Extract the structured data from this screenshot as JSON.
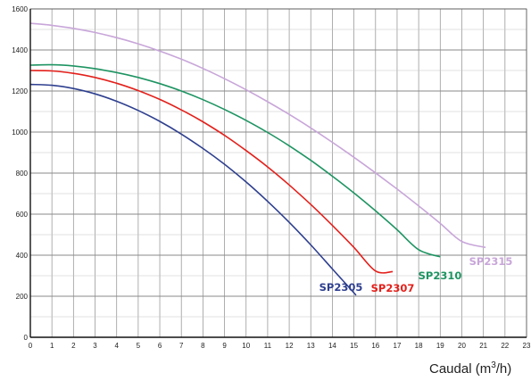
{
  "chart_data": {
    "type": "line",
    "xlabel": "Caudal (m",
    "xlabel_sup": "3",
    "xlabel_end": "/h)",
    "ylabel": "",
    "xlim": [
      0,
      23
    ],
    "ylim": [
      0,
      1600
    ],
    "x_ticks": [
      0,
      1,
      2,
      3,
      4,
      5,
      6,
      7,
      8,
      9,
      10,
      11,
      12,
      13,
      14,
      15,
      16,
      17,
      18,
      19,
      20,
      21,
      22,
      23
    ],
    "y_ticks": [
      0,
      200,
      400,
      600,
      800,
      1000,
      1200,
      1400,
      1600
    ],
    "grid": true,
    "series": [
      {
        "name": "SP2305",
        "color": "#2e3f8f",
        "x": [
          0,
          1,
          2,
          3,
          4,
          5,
          6,
          7,
          8,
          9,
          10,
          11,
          12,
          13,
          14,
          15.1
        ],
        "y": [
          1232,
          1228,
          1212,
          1186,
          1150,
          1105,
          1052,
          990,
          920,
          843,
          757,
          662,
          560,
          450,
          333,
          205
        ]
      },
      {
        "name": "SP2307",
        "color": "#e3201b",
        "x": [
          0,
          1,
          2,
          3,
          4,
          5,
          6,
          7,
          8,
          9,
          10,
          11,
          12,
          13,
          14,
          15,
          16,
          16.8
        ],
        "y": [
          1300,
          1298,
          1286,
          1266,
          1238,
          1202,
          1159,
          1108,
          1050,
          984,
          910,
          830,
          742,
          647,
          545,
          438,
          323,
          320
        ]
      },
      {
        "name": "SP2310",
        "color": "#1e9462",
        "x": [
          0,
          1,
          2,
          3,
          4,
          5,
          6,
          7,
          8,
          9,
          10,
          11,
          12,
          13,
          14,
          15,
          16,
          17,
          18,
          19
        ],
        "y": [
          1326,
          1328,
          1322,
          1309,
          1290,
          1266,
          1236,
          1200,
          1158,
          1110,
          1057,
          998,
          933,
          862,
          785,
          703,
          616,
          524,
          427,
          392
        ]
      },
      {
        "name": "SP2315",
        "color": "#c8a6d9",
        "x": [
          0,
          1,
          2,
          3,
          4,
          5,
          6,
          7,
          8,
          9,
          10,
          11,
          12,
          13,
          14,
          15,
          16,
          17,
          18,
          19,
          20,
          21.1
        ],
        "y": [
          1530,
          1520,
          1505,
          1485,
          1460,
          1430,
          1395,
          1355,
          1310,
          1260,
          1206,
          1148,
          1086,
          1020,
          950,
          877,
          801,
          722,
          640,
          555,
          467,
          438
        ]
      }
    ]
  }
}
